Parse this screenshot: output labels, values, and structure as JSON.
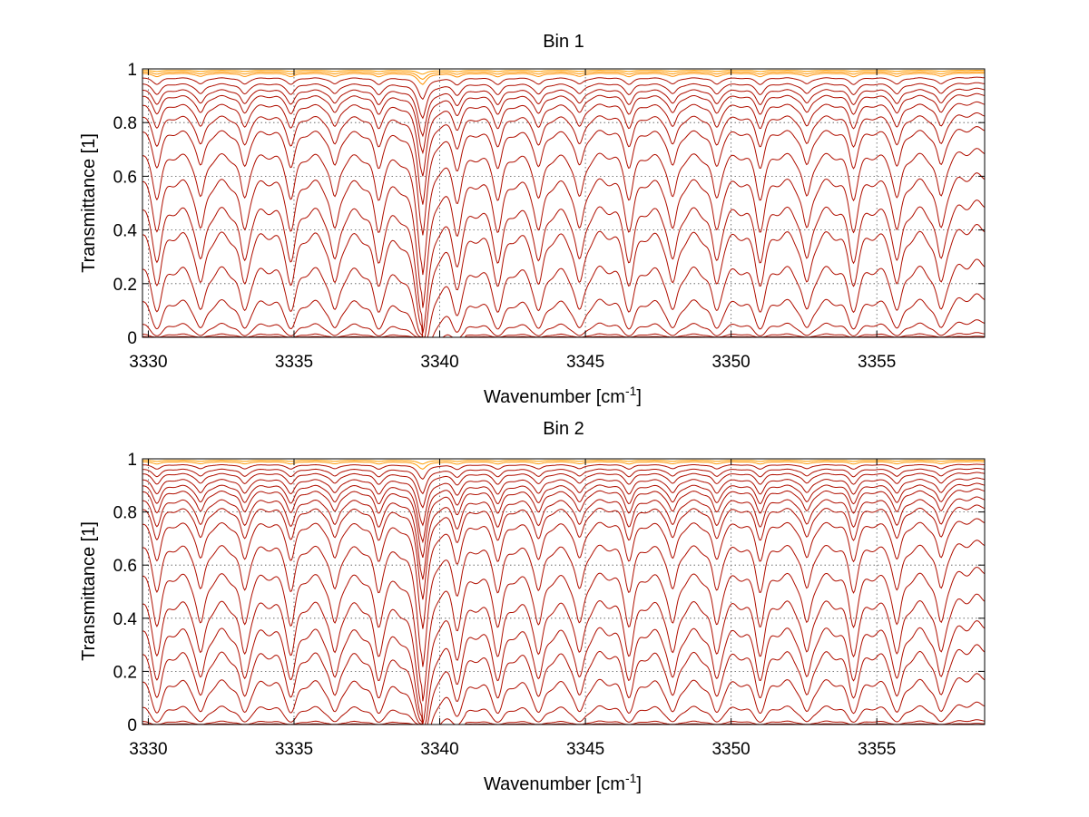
{
  "chart_data": [
    {
      "type": "line",
      "title": "Bin 1",
      "xlabel": "Wavenumber [cm",
      "xlabel_sup": "-1",
      "xlabel_end": "]",
      "ylabel": "Transmittance [1]",
      "xlim": [
        3329.8,
        3358.7
      ],
      "ylim": [
        0,
        1
      ],
      "xticks": [
        3330,
        3335,
        3340,
        3345,
        3350,
        3355
      ],
      "xtick_labels": [
        "3330",
        "3335",
        "3340",
        "3345",
        "3350",
        "3355"
      ],
      "yticks": [
        0,
        0.2,
        0.4,
        0.6,
        0.8,
        1
      ],
      "ytick_labels": [
        "0",
        "0.2",
        "0.4",
        "0.6",
        "0.8",
        "1"
      ],
      "grid": true,
      "absorption_lines": [
        3330.3,
        3331.8,
        3333.3,
        3334.9,
        3336.4,
        3337.9,
        3339.4,
        3340.6,
        3342.0,
        3343.4,
        3344.8,
        3346.5,
        3348.0,
        3349.5,
        3351.0,
        3352.6,
        3354.2,
        3355.7,
        3357.2
      ],
      "strong_line": 3339.4,
      "series_baselines": [
        1.0,
        0.995,
        0.99,
        0.985,
        0.97,
        0.95,
        0.93,
        0.91,
        0.88,
        0.84,
        0.79,
        0.71,
        0.62,
        0.52,
        0.43,
        0.3,
        0.17,
        0.07,
        0.02,
        0.005
      ]
    },
    {
      "type": "line",
      "title": "Bin 2",
      "xlabel": "Wavenumber [cm",
      "xlabel_sup": "-1",
      "xlabel_end": "]",
      "ylabel": "Transmittance [1]",
      "xlim": [
        3329.8,
        3358.7
      ],
      "ylim": [
        0,
        1
      ],
      "xticks": [
        3330,
        3335,
        3340,
        3345,
        3350,
        3355
      ],
      "xtick_labels": [
        "3330",
        "3335",
        "3340",
        "3345",
        "3350",
        "3355"
      ],
      "yticks": [
        0,
        0.2,
        0.4,
        0.6,
        0.8,
        1
      ],
      "ytick_labels": [
        "0",
        "0.2",
        "0.4",
        "0.6",
        "0.8",
        "1"
      ],
      "grid": true,
      "absorption_lines": [
        3330.3,
        3331.8,
        3333.3,
        3334.9,
        3336.4,
        3337.9,
        3339.4,
        3340.6,
        3342.0,
        3343.4,
        3344.8,
        3346.5,
        3348.0,
        3349.5,
        3351.0,
        3352.6,
        3354.2,
        3355.7,
        3357.2
      ],
      "strong_line": 3339.4,
      "series_baselines": [
        1.0,
        0.995,
        0.99,
        0.98,
        0.965,
        0.95,
        0.93,
        0.91,
        0.89,
        0.86,
        0.83,
        0.78,
        0.7,
        0.6,
        0.5,
        0.4,
        0.31,
        0.2,
        0.09,
        0.02,
        0.005
      ]
    }
  ]
}
